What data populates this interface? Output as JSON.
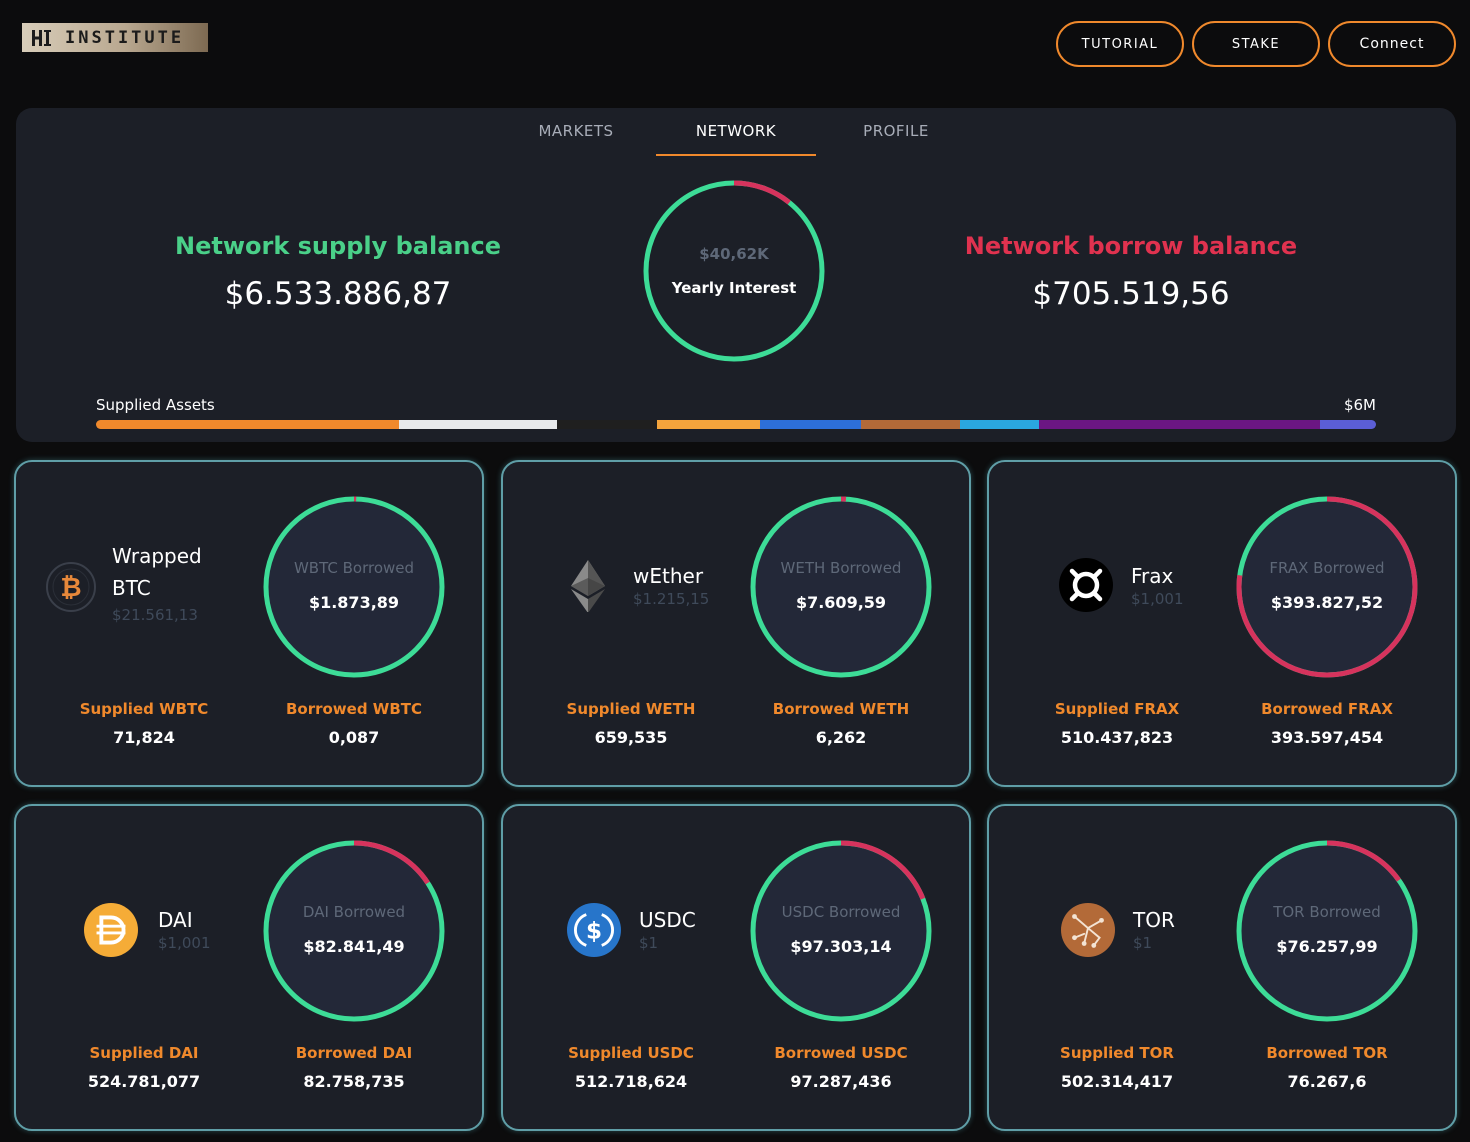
{
  "header": {
    "logo_text": "INSTITUTE",
    "buttons": {
      "tutorial": "TUTORIAL",
      "stake": "STAKE",
      "connect": "Connect"
    }
  },
  "tabs": {
    "markets": "MARKETS",
    "network": "NETWORK",
    "profile": "PROFILE"
  },
  "network": {
    "supply_title": "Network supply balance",
    "supply_value": "$6.533.886,87",
    "borrow_title": "Network borrow balance",
    "borrow_value": "$705.519,56",
    "yearly_interest_value": "$40,62K",
    "yearly_interest_label": "Yearly Interest",
    "supplied_assets_label": "Supplied Assets",
    "supplied_assets_max": "$6M"
  },
  "colors": {
    "accent": "#f0892c",
    "supply_green": "#4ad089",
    "borrow_red": "#e0324f",
    "ring_green": "#3ddc97",
    "ring_red": "#d6335d"
  },
  "cards": [
    {
      "name": "Wrapped BTC",
      "price": "$21.561,13",
      "icon": "bitcoin-icon",
      "ring_label": "WBTC Borrowed",
      "ring_value": "$1.873,89",
      "borrow_fraction": 0.001,
      "supplied_label": "Supplied WBTC",
      "supplied_value": "71,824",
      "borrowed_label": "Borrowed WBTC",
      "borrowed_value": "0,087"
    },
    {
      "name": "wEther",
      "price": "$1.215,15",
      "icon": "ethereum-icon",
      "ring_label": "WETH Borrowed",
      "ring_value": "$7.609,59",
      "borrow_fraction": 0.009,
      "supplied_label": "Supplied WETH",
      "supplied_value": "659,535",
      "borrowed_label": "Borrowed WETH",
      "borrowed_value": "6,262"
    },
    {
      "name": "Frax",
      "price": "$1,001",
      "icon": "frax-icon",
      "ring_label": "FRAX Borrowed",
      "ring_value": "$393.827,52",
      "borrow_fraction": 0.771,
      "supplied_label": "Supplied FRAX",
      "supplied_value": "510.437,823",
      "borrowed_label": "Borrowed FRAX",
      "borrowed_value": "393.597,454"
    },
    {
      "name": "DAI",
      "price": "$1,001",
      "icon": "dai-icon",
      "ring_label": "DAI Borrowed",
      "ring_value": "$82.841,49",
      "borrow_fraction": 0.158,
      "supplied_label": "Supplied DAI",
      "supplied_value": "524.781,077",
      "borrowed_label": "Borrowed DAI",
      "borrowed_value": "82.758,735"
    },
    {
      "name": "USDC",
      "price": "$1",
      "icon": "usdc-icon",
      "ring_label": "USDC Borrowed",
      "ring_value": "$97.303,14",
      "borrow_fraction": 0.19,
      "supplied_label": "Supplied USDC",
      "supplied_value": "512.718,624",
      "borrowed_label": "Borrowed USDC",
      "borrowed_value": "97.287,436"
    },
    {
      "name": "TOR",
      "price": "$1",
      "icon": "tor-icon",
      "ring_label": "TOR Borrowed",
      "ring_value": "$76.257,99",
      "borrow_fraction": 0.152,
      "supplied_label": "Supplied TOR",
      "supplied_value": "502.314,417",
      "borrowed_label": "Borrowed TOR",
      "borrowed_value": "76.267,6"
    }
  ],
  "yearly_interest_borrow_fraction": 0.108,
  "supplied_assets_segments": [
    {
      "asset": "WBTC",
      "color": "#f0892c",
      "fraction": 0.237
    },
    {
      "asset": "WETH",
      "color": "#e8eaec",
      "fraction": 0.123
    },
    {
      "asset": "FRAX",
      "color": "#1f1f1f",
      "fraction": 0.078
    },
    {
      "asset": "DAI",
      "color": "#f4a43c",
      "fraction": 0.081
    },
    {
      "asset": "USDC",
      "color": "#2d6fd9",
      "fraction": 0.079
    },
    {
      "asset": "TOR",
      "color": "#b36a38",
      "fraction": 0.077
    },
    {
      "asset": "other-1",
      "color": "#2aa7e0",
      "fraction": 0.062
    },
    {
      "asset": "other-2",
      "color": "#6b1683",
      "fraction": 0.219
    },
    {
      "asset": "other-3",
      "color": "#5b5ed6",
      "fraction": 0.044
    }
  ]
}
